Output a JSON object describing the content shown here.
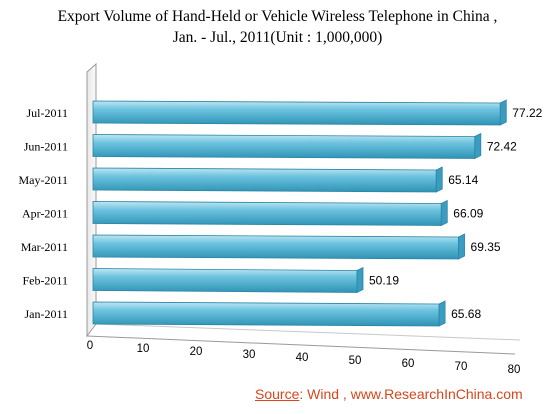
{
  "chart_data": {
    "type": "bar",
    "orientation": "horizontal",
    "title_lines": [
      "Export Volume of Hand-Held or Vehicle Wireless Telephone in China ,",
      "Jan. - Jul., 2011(Unit : 1,000,000)"
    ],
    "categories": [
      "Jan-2011",
      "Feb-2011",
      "Mar-2011",
      "Apr-2011",
      "May-2011",
      "Jun-2011",
      "Jul-2011"
    ],
    "values": [
      65.68,
      50.19,
      69.35,
      66.09,
      65.14,
      72.42,
      77.22
    ],
    "data_labels": [
      "65.68",
      "50.19",
      "69.35",
      "66.09",
      "65.14",
      "72.42",
      "77.22"
    ],
    "x_ticks": [
      "0",
      "10",
      "20",
      "30",
      "40",
      "50",
      "60",
      "70",
      "80"
    ],
    "xlim": [
      0,
      80
    ],
    "grid": false,
    "bar_color": "#4bacc6"
  },
  "source": {
    "label": "Source",
    "text": ": Wind , www.ResearchInChina.com",
    "color": "#d8461b"
  }
}
